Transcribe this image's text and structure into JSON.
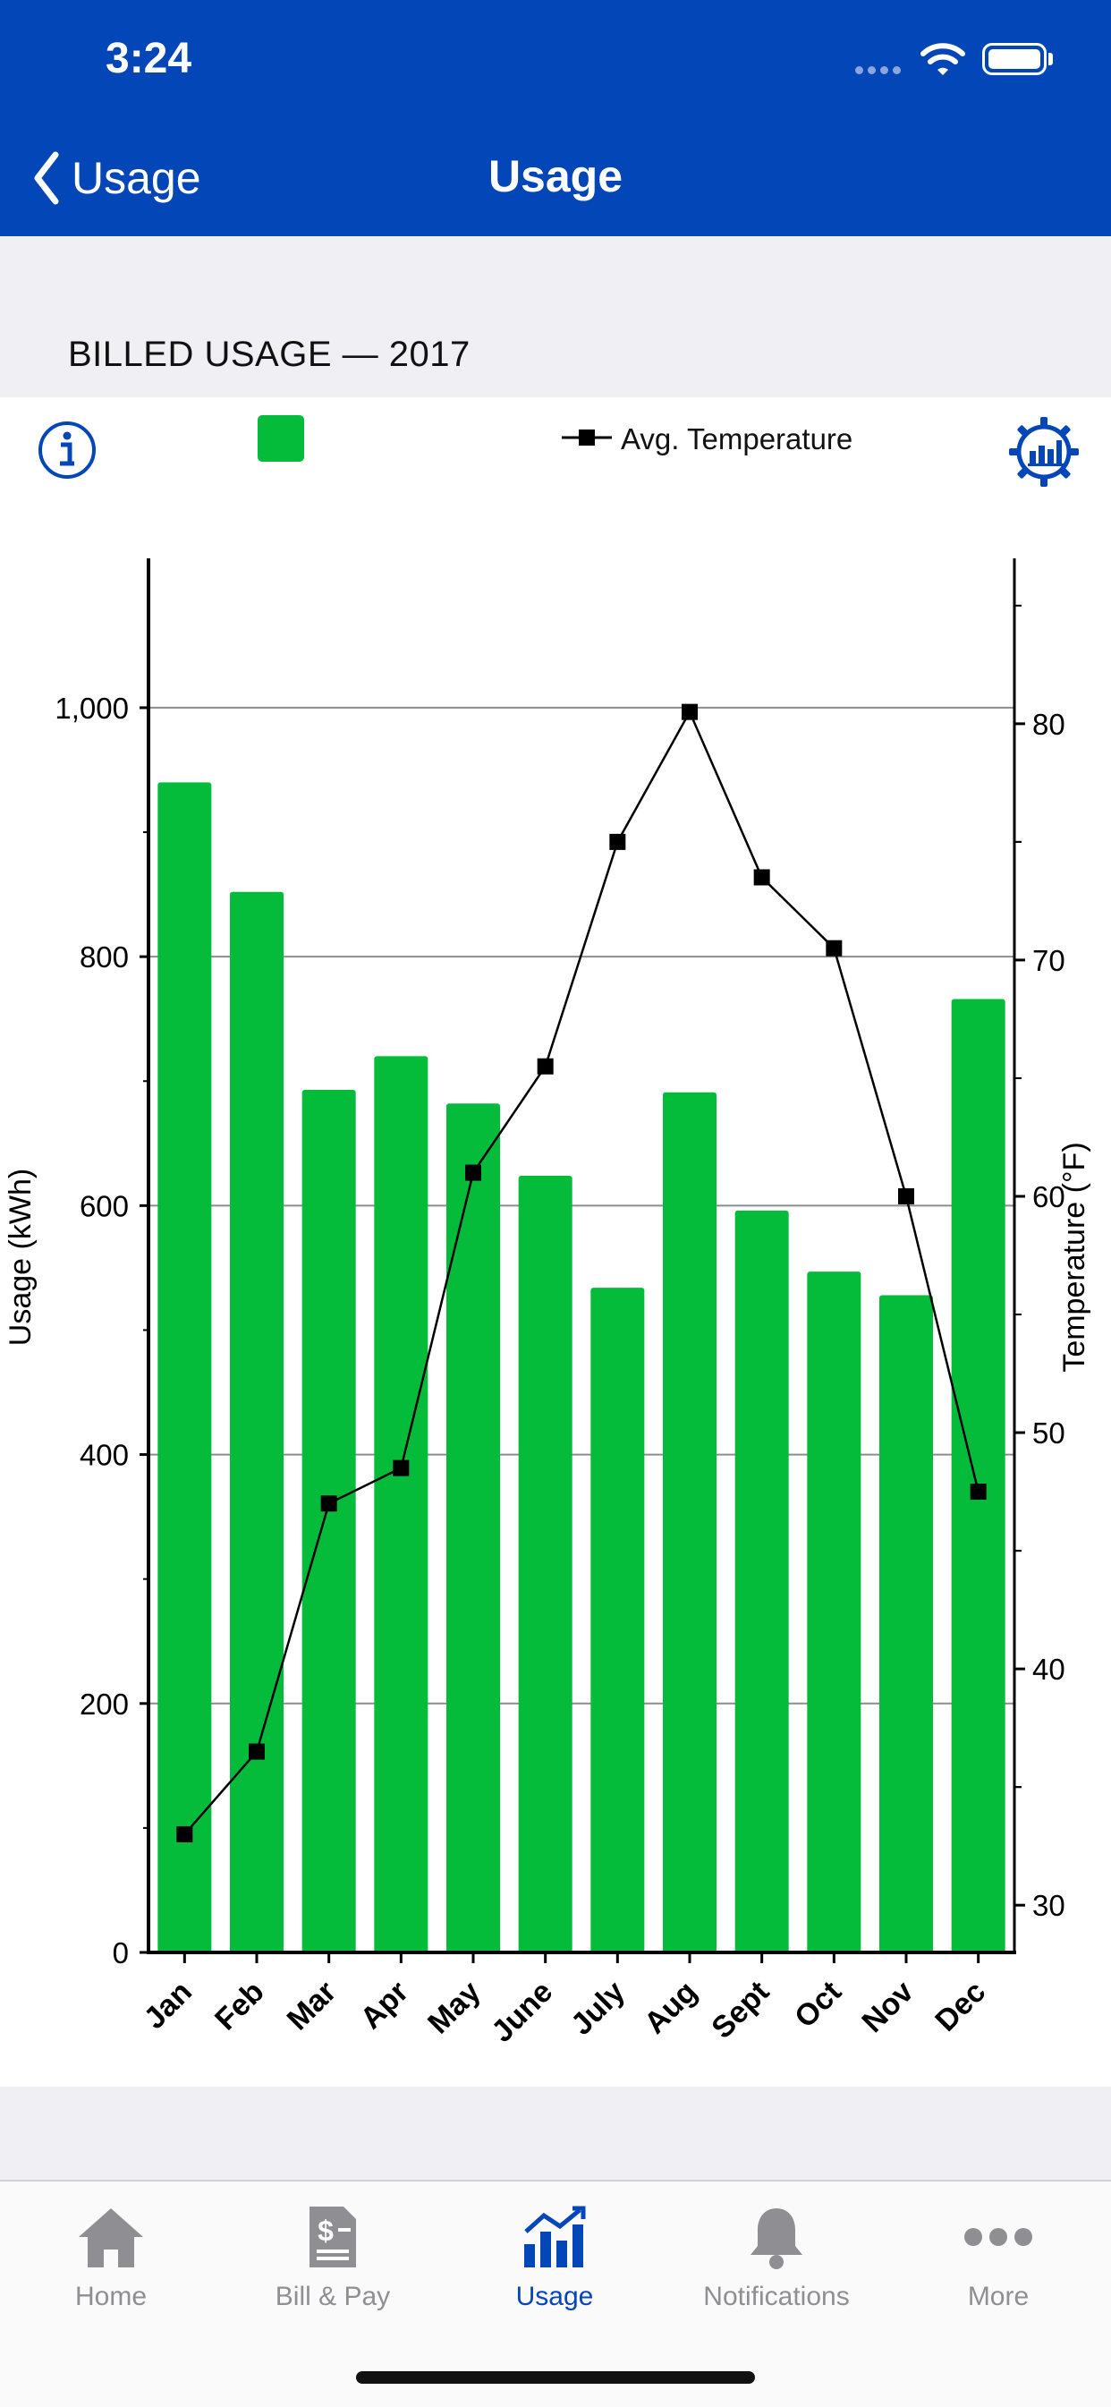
{
  "status_bar": {
    "time": "3:24"
  },
  "nav": {
    "back_label": "Usage",
    "title": "Usage"
  },
  "section": {
    "title": "BILLED USAGE — 2017"
  },
  "legend": {
    "line_label": "Avg. Temperature"
  },
  "colors": {
    "brand_blue": "#0346b8",
    "bar_green": "#05bb3a",
    "inactive_gray": "#8e8e93"
  },
  "chart_data": {
    "type": "bar",
    "categories": [
      "Jan",
      "Feb",
      "Mar",
      "Apr",
      "May",
      "June",
      "July",
      "Aug",
      "Sept",
      "Oct",
      "Nov",
      "Dec"
    ],
    "series": [
      {
        "values": [
          940,
          852,
          693,
          720,
          682,
          624,
          534,
          691,
          596,
          547,
          528,
          766
        ]
      },
      {
        "name": "Avg. Temperature",
        "type": "line",
        "axis": "right",
        "values": [
          33,
          36.5,
          47,
          48.5,
          61,
          65.5,
          75,
          80.5,
          73.5,
          70.5,
          60,
          47.5
        ]
      }
    ],
    "ylabel": "Usage (kWh)",
    "y2label": "Temperature (°F)",
    "ylim": [
      0,
      1120
    ],
    "yticks": [
      0,
      200,
      400,
      600,
      800,
      1000
    ],
    "ytick_labels": [
      "0",
      "200",
      "400",
      "600",
      "800",
      "1,000"
    ],
    "y2lim": [
      28,
      87
    ],
    "y2ticks": [
      30,
      40,
      50,
      60,
      70,
      80
    ],
    "grid": true
  },
  "tabs": [
    {
      "label": "Home",
      "icon": "home-icon",
      "active": false
    },
    {
      "label": "Bill & Pay",
      "icon": "bill-pay-icon",
      "active": false
    },
    {
      "label": "Usage",
      "icon": "usage-chart-icon",
      "active": true
    },
    {
      "label": "Notifications",
      "icon": "bell-icon",
      "active": false
    },
    {
      "label": "More",
      "icon": "more-icon",
      "active": false
    }
  ]
}
